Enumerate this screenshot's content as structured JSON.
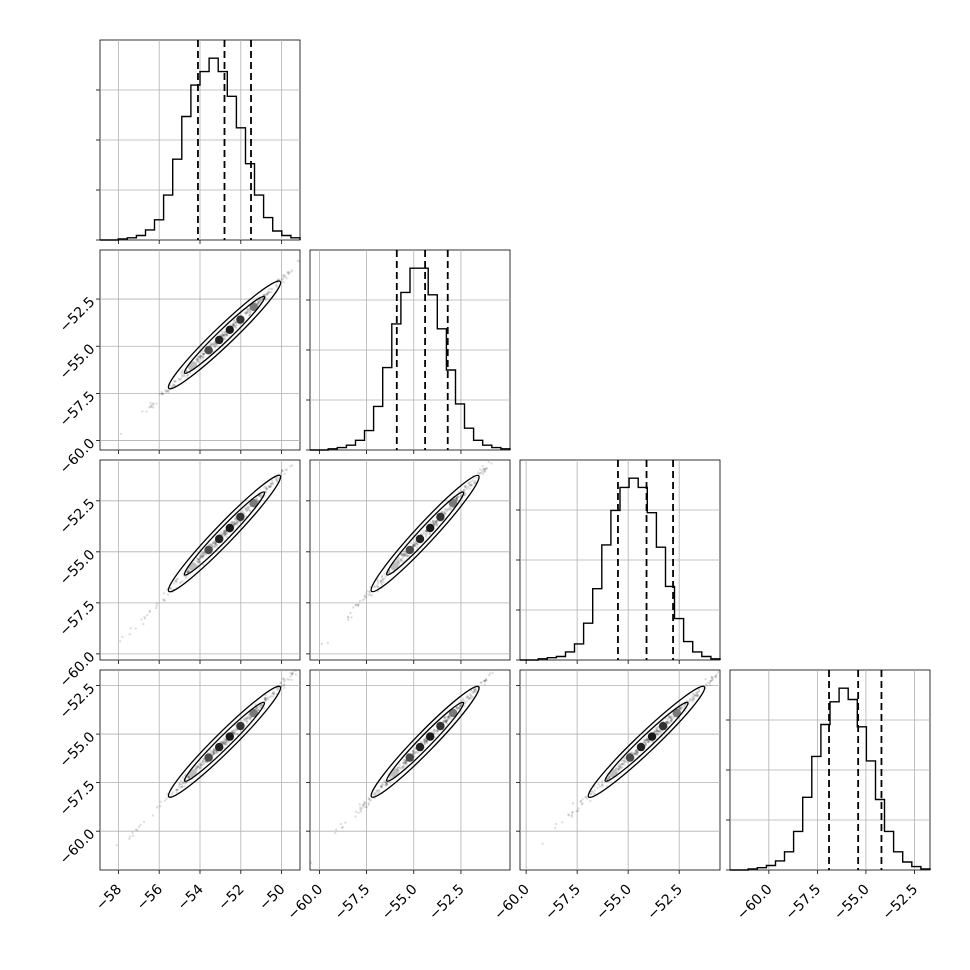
{
  "chart_data": {
    "type": "corner",
    "n_params": 4,
    "grid": true,
    "params": [
      {
        "index": 0,
        "median": -52.8,
        "q16": -54.1,
        "q84": -51.5,
        "lim": [
          -58.9,
          -49.1
        ],
        "ticks": [
          -58,
          -56,
          -54,
          -52,
          -50
        ],
        "tick_labels": [
          "−58",
          "−56",
          "−54",
          "−52",
          "−50"
        ]
      },
      {
        "index": 1,
        "median": -54.4,
        "q16": -55.9,
        "q84": -53.2,
        "lim": [
          -60.5,
          -49.9
        ],
        "ticks": [
          -60.0,
          -57.5,
          -55.0,
          -52.5
        ],
        "tick_labels": [
          "−60.0",
          "−57.5",
          "−55.0",
          "−52.5"
        ]
      },
      {
        "index": 2,
        "median": -54.1,
        "q16": -55.5,
        "q84": -52.8,
        "lim": [
          -60.3,
          -50.5
        ],
        "ticks": [
          -60.0,
          -57.5,
          -55.0,
          -52.5
        ],
        "tick_labels": [
          "−60.0",
          "−57.5",
          "−55.0",
          "−52.5"
        ]
      },
      {
        "index": 3,
        "median": -55.4,
        "q16": -56.9,
        "q84": -54.2,
        "lim": [
          -62.0,
          -51.7
        ],
        "ticks": [
          -60.0,
          -57.5,
          -55.0,
          -52.5
        ],
        "tick_labels": [
          "−60.0",
          "−57.5",
          "−55.0",
          "−52.5"
        ]
      }
    ],
    "histograms": [
      [
        0,
        0,
        1,
        2,
        4,
        9,
        18,
        40,
        72,
        110,
        138,
        150,
        162,
        150,
        128,
        100,
        68,
        40,
        20,
        8,
        4,
        2
      ],
      [
        0,
        0,
        1,
        2,
        4,
        8,
        16,
        36,
        68,
        104,
        130,
        150,
        150,
        128,
        100,
        66,
        38,
        18,
        8,
        4,
        2,
        1
      ],
      [
        0,
        0,
        1,
        2,
        3,
        7,
        14,
        32,
        62,
        100,
        130,
        150,
        158,
        150,
        128,
        98,
        64,
        36,
        16,
        7,
        3,
        1
      ],
      [
        0,
        0,
        1,
        2,
        4,
        8,
        16,
        34,
        64,
        100,
        128,
        148,
        160,
        150,
        126,
        96,
        62,
        34,
        16,
        7,
        3,
        1
      ]
    ]
  }
}
